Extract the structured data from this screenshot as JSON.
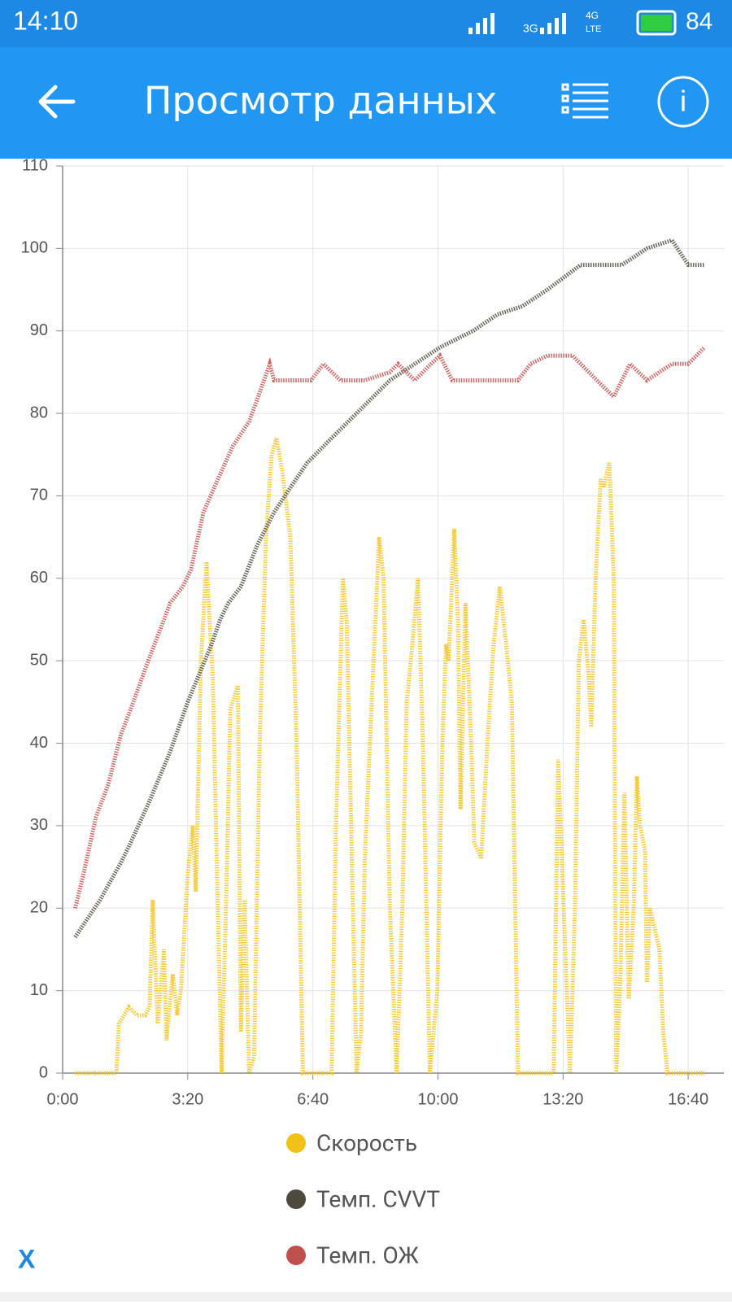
{
  "status_bar": {
    "time": "14:10",
    "net1": "3G",
    "net2": "4G",
    "net3": "LTE",
    "battery": "84"
  },
  "app_bar": {
    "title": "Просмотр данных"
  },
  "footer": {
    "close": "X"
  },
  "chart_data": {
    "type": "line",
    "legend": "bottom",
    "grid": true,
    "xlim": [
      0,
      1057
    ],
    "ylim": [
      0,
      110
    ],
    "xticks": [
      {
        "value": 0,
        "label": "0:00"
      },
      {
        "value": 200,
        "label": "3:20"
      },
      {
        "value": 400,
        "label": "6:40"
      },
      {
        "value": 600,
        "label": "10:00"
      },
      {
        "value": 800,
        "label": "13:20"
      },
      {
        "value": 1000,
        "label": "16:40"
      }
    ],
    "yticks": [
      0,
      10,
      20,
      30,
      40,
      50,
      60,
      70,
      80,
      90,
      100,
      110
    ],
    "series": [
      {
        "name": "Скорость",
        "color": "#f2c21b",
        "x": [
          20,
          86,
          90,
          106,
          119,
          132,
          139,
          144,
          152,
          162,
          166,
          176,
          183,
          189,
          200,
          208,
          213,
          221,
          230,
          240,
          248,
          254,
          261,
          268,
          280,
          285,
          291,
          298,
          306,
          315,
          325,
          334,
          342,
          351,
          364,
          374,
          384,
          430,
          437,
          448,
          454,
          464,
          470,
          477,
          483,
          494,
          506,
          513,
          523,
          534,
          543,
          550,
          559,
          568,
          576,
          587,
          599,
          607,
          613,
          617,
          626,
          632,
          636,
          644,
          653,
          658,
          669,
          679,
          689,
          699,
          709,
          718,
          728,
          785,
          792,
          801,
          811,
          819,
          825,
          833,
          841,
          845,
          852,
          860,
          865,
          874,
          881,
          885,
          891,
          898,
          905,
          913,
          918,
          923,
          931,
          934,
          939,
          954,
          960,
          967,
          1026
        ],
        "values": [
          0,
          0,
          6,
          8,
          7,
          7,
          8,
          21,
          6,
          15,
          4,
          12,
          7,
          10,
          24,
          30,
          22,
          50,
          62,
          48,
          20,
          0,
          20,
          44,
          47,
          5,
          21,
          0,
          2,
          40,
          65,
          75,
          77,
          73,
          65,
          40,
          0,
          0,
          30,
          60,
          55,
          20,
          0,
          5,
          26,
          45,
          65,
          60,
          20,
          0,
          20,
          45,
          52,
          60,
          40,
          0,
          10,
          40,
          52,
          50,
          66,
          55,
          32,
          57,
          40,
          28,
          26,
          40,
          52,
          59,
          52,
          45,
          0,
          0,
          38,
          20,
          0,
          20,
          50,
          55,
          48,
          42,
          60,
          72,
          71,
          74,
          60,
          0,
          10,
          34,
          9,
          20,
          36,
          30,
          27,
          11,
          20,
          15,
          5,
          0,
          0
        ]
      },
      {
        "name": "Темп. CVVT",
        "color": "#4d4a3c",
        "x": [
          20,
          60,
          93,
          106,
          139,
          172,
          200,
          238,
          252,
          265,
          285,
          311,
          338,
          364,
          391,
          430,
          483,
          523,
          563,
          603,
          656,
          695,
          735,
          775,
          828,
          894,
          934,
          974,
          1000,
          1026
        ],
        "values": [
          16.5,
          21,
          25.5,
          27.5,
          33,
          39,
          45,
          52,
          55,
          57,
          59,
          64,
          68,
          71,
          74,
          77,
          81,
          84,
          86,
          88,
          90,
          92,
          93,
          95,
          98,
          98,
          100,
          101,
          98,
          98
        ]
      },
      {
        "name": "Темп. ОЖ",
        "color": "#c0504d",
        "x": [
          20,
          33,
          53,
          73,
          93,
          113,
          132,
          152,
          172,
          192,
          205,
          225,
          248,
          272,
          298,
          322,
          331,
          338,
          377,
          397,
          417,
          444,
          483,
          523,
          536,
          563,
          589,
          603,
          623,
          682,
          728,
          748,
          775,
          815,
          854,
          881,
          907,
          934,
          974,
          1000,
          1026
        ],
        "values": [
          20,
          24,
          31,
          35,
          41,
          45,
          49,
          53,
          57,
          59,
          61,
          68,
          72,
          76,
          79,
          84,
          86,
          84,
          84,
          84,
          86,
          84,
          84,
          85,
          86,
          84,
          86,
          87,
          84,
          84,
          84,
          86,
          87,
          87,
          84,
          82,
          86,
          84,
          86,
          86,
          88
        ]
      }
    ]
  }
}
